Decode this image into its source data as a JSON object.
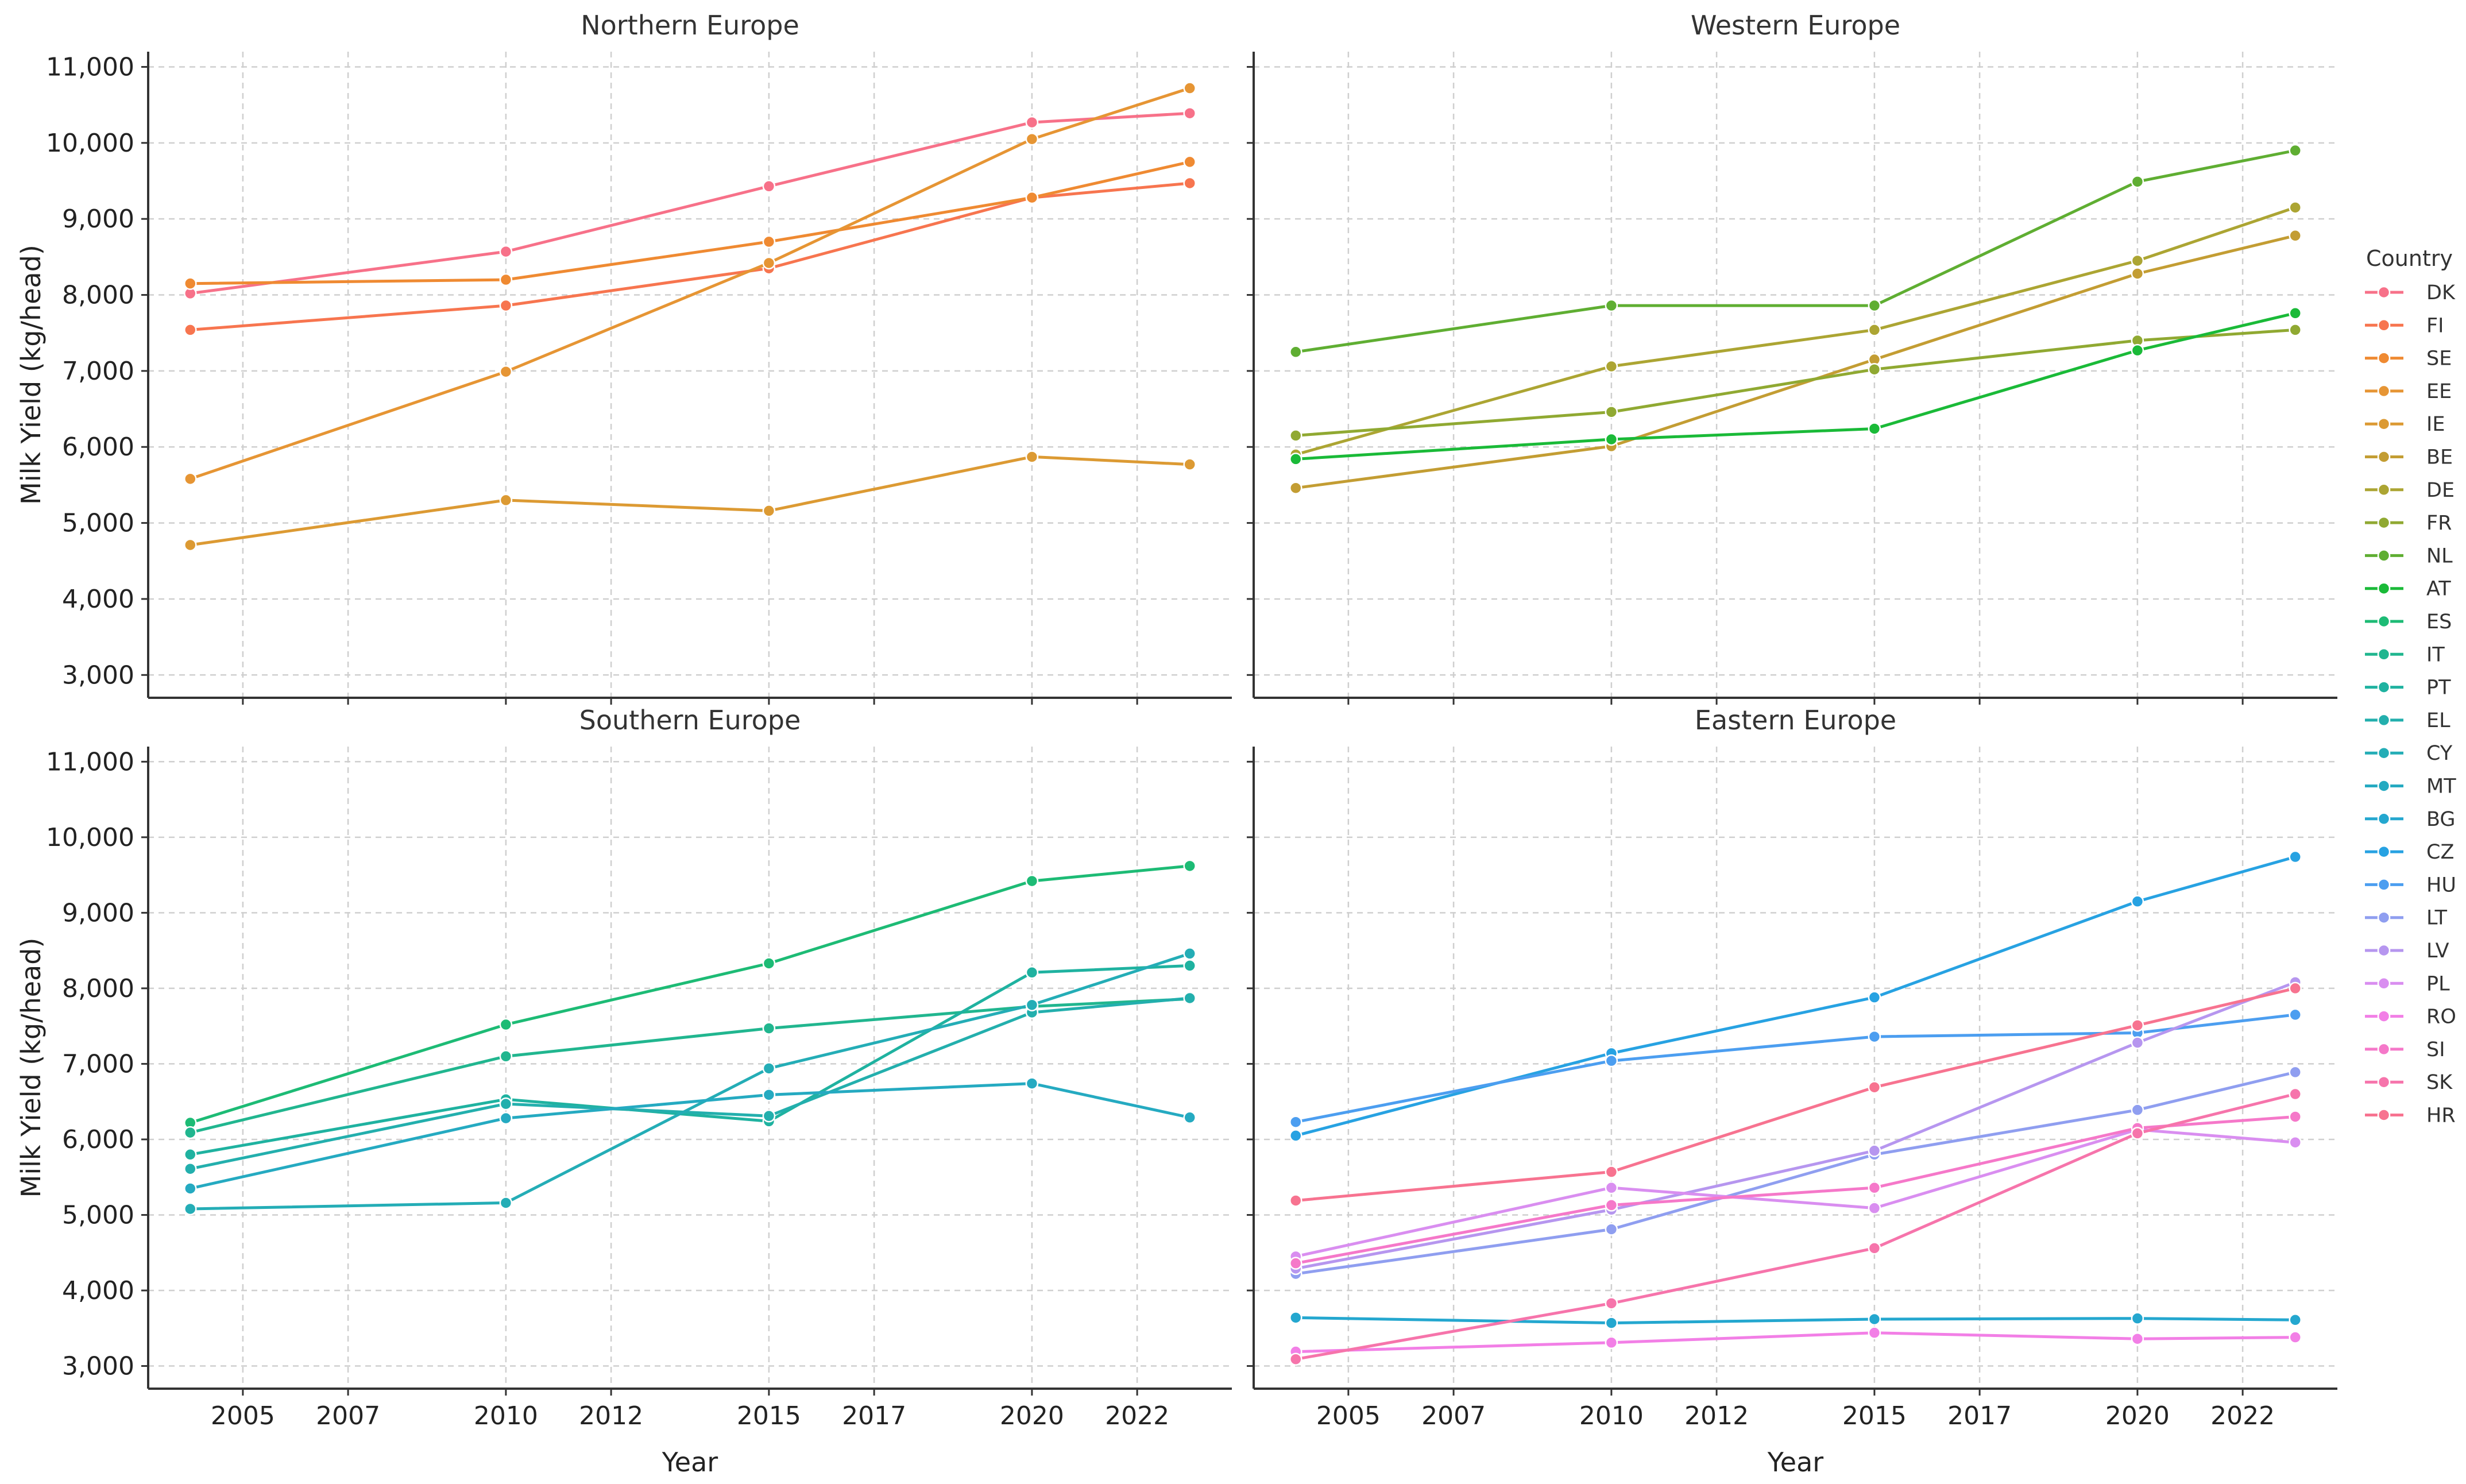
{
  "chart_data": {
    "type": "line",
    "layout": "2x2 facet grid",
    "x": [
      2004,
      2010,
      2015,
      2020,
      2023
    ],
    "xticks": [
      2005,
      2007,
      2010,
      2012,
      2015,
      2017,
      2020,
      2022
    ],
    "xlim": [
      2003.2,
      2023.8
    ],
    "yticks": [
      3000,
      4000,
      5000,
      6000,
      7000,
      8000,
      9000,
      10000,
      11000
    ],
    "ylim": [
      2700,
      11200
    ],
    "xlabel": "Year",
    "ylabel": "Milk Yield (kg/head)",
    "grid": true,
    "legend_title": "Country",
    "legend_position": "right",
    "panels": [
      {
        "title": "Northern Europe",
        "series": [
          {
            "name": "DK",
            "color": "#f77189",
            "values": [
              8020,
              8570,
              9430,
              10270,
              10390
            ]
          },
          {
            "name": "FI",
            "color": "#f7754f",
            "values": [
              7540,
              7860,
              8350,
              9280,
              9470
            ]
          },
          {
            "name": "SE",
            "color": "#ef8a32",
            "values": [
              8150,
              8200,
              8700,
              9280,
              9750
            ]
          },
          {
            "name": "EE",
            "color": "#e69534",
            "values": [
              5580,
              6990,
              8420,
              10050,
              10720
            ]
          },
          {
            "name": "IE",
            "color": "#dc9a33",
            "values": [
              4710,
              5300,
              5160,
              5870,
              5770
            ]
          }
        ]
      },
      {
        "title": "Western Europe",
        "series": [
          {
            "name": "BE",
            "color": "#c39d33",
            "values": [
              5460,
              6010,
              7150,
              8280,
              8780
            ]
          },
          {
            "name": "DE",
            "color": "#aca533",
            "values": [
              5900,
              7060,
              7540,
              8450,
              9150
            ]
          },
          {
            "name": "FR",
            "color": "#90a932",
            "values": [
              6150,
              6460,
              7020,
              7400,
              7540
            ]
          },
          {
            "name": "NL",
            "color": "#5fae32",
            "values": [
              7250,
              7860,
              7860,
              9490,
              9900
            ]
          },
          {
            "name": "AT",
            "color": "#1aba38",
            "values": [
              5840,
              6100,
              6240,
              7270,
              7760
            ]
          }
        ]
      },
      {
        "title": "Southern Europe",
        "series": [
          {
            "name": "ES",
            "color": "#1dbb75",
            "values": [
              6220,
              7520,
              8330,
              9420,
              9620
            ]
          },
          {
            "name": "IT",
            "color": "#21b68f",
            "values": [
              6090,
              7100,
              7470,
              7760,
              7860
            ]
          },
          {
            "name": "PT",
            "color": "#1fb2a0",
            "values": [
              5800,
              6530,
              6240,
              8210,
              8300
            ]
          },
          {
            "name": "EL",
            "color": "#23afad",
            "values": [
              5610,
              6470,
              6310,
              7680,
              7870
            ]
          },
          {
            "name": "CY",
            "color": "#24adb6",
            "values": [
              5080,
              5160,
              6940,
              7780,
              8460
            ]
          },
          {
            "name": "MT",
            "color": "#25aac1",
            "values": [
              5350,
              6280,
              6590,
              6740,
              6290
            ]
          }
        ]
      },
      {
        "title": "Eastern Europe",
        "series": [
          {
            "name": "BG",
            "color": "#24a7cf",
            "values": [
              3640,
              3570,
              3620,
              3630,
              3610
            ]
          },
          {
            "name": "CZ",
            "color": "#27a2e2",
            "values": [
              6050,
              7140,
              7880,
              9150,
              9740
            ]
          },
          {
            "name": "HU",
            "color": "#4c9ef0",
            "values": [
              6230,
              7040,
              7360,
              7410,
              7650
            ]
          },
          {
            "name": "LT",
            "color": "#8f9ef0",
            "values": [
              4220,
              4810,
              5800,
              6390,
              6890
            ]
          },
          {
            "name": "LV",
            "color": "#b696ef",
            "values": [
              4290,
              5070,
              5850,
              7280,
              8080
            ]
          },
          {
            "name": "PL",
            "color": "#d98ef0",
            "values": [
              4450,
              5360,
              5090,
              6130,
              5960
            ]
          },
          {
            "name": "RO",
            "color": "#f27fe6",
            "values": [
              3190,
              3310,
              3440,
              3360,
              3380
            ]
          },
          {
            "name": "SI",
            "color": "#f578c9",
            "values": [
              4360,
              5130,
              5360,
              6150,
              6300
            ]
          },
          {
            "name": "SK",
            "color": "#f674ab",
            "values": [
              3090,
              3830,
              4560,
              6080,
              6600
            ]
          },
          {
            "name": "HR",
            "color": "#f77390",
            "values": [
              5190,
              5570,
              6690,
              7510,
              8000
            ]
          }
        ]
      }
    ]
  }
}
